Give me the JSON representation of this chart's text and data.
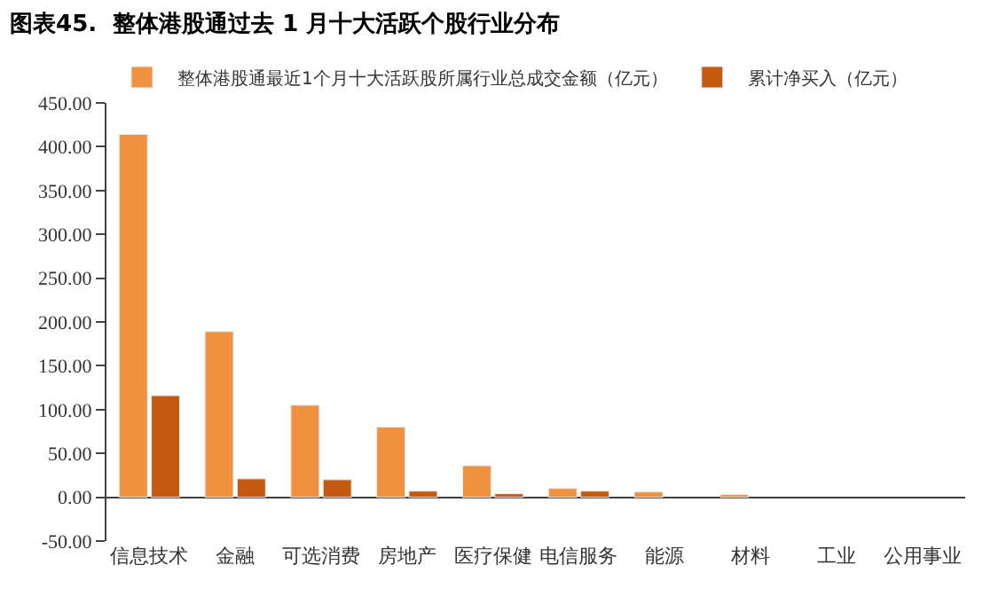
{
  "chart_data": {
    "type": "bar",
    "title": "图表45.  整体港股通过去 1 月十大活跃个股行业分布",
    "categories": [
      "信息技术",
      "金融",
      "可选消费",
      "房地产",
      "医疗保健",
      "电信服务",
      "能源",
      "材料",
      "工业",
      "公用事业"
    ],
    "series": [
      {
        "name": "整体港股通最近1个月十大活跃股所属行业总成交金额（亿元）",
        "color": "#f0913f",
        "values": [
          414,
          189,
          105,
          80,
          36,
          10,
          6,
          3,
          null,
          null
        ]
      },
      {
        "name": "累计净买入（亿元）",
        "color": "#c55a11",
        "values": [
          116,
          21,
          20,
          7,
          4,
          7,
          null,
          null,
          null,
          null
        ]
      }
    ],
    "ylim": [
      -50,
      450
    ],
    "yticks": [
      {
        "value": -50,
        "label": "-50.00"
      },
      {
        "value": 0,
        "label": "0.00"
      },
      {
        "value": 50,
        "label": "50.00"
      },
      {
        "value": 100,
        "label": "100.00"
      },
      {
        "value": 150,
        "label": "150.00"
      },
      {
        "value": 200,
        "label": "200.00"
      },
      {
        "value": 250,
        "label": "250.00"
      },
      {
        "value": 300,
        "label": "300.00"
      },
      {
        "value": 350,
        "label": "350.00"
      },
      {
        "value": 400,
        "label": "400.00"
      },
      {
        "value": 450,
        "label": "450.00"
      }
    ],
    "legend": "top"
  }
}
